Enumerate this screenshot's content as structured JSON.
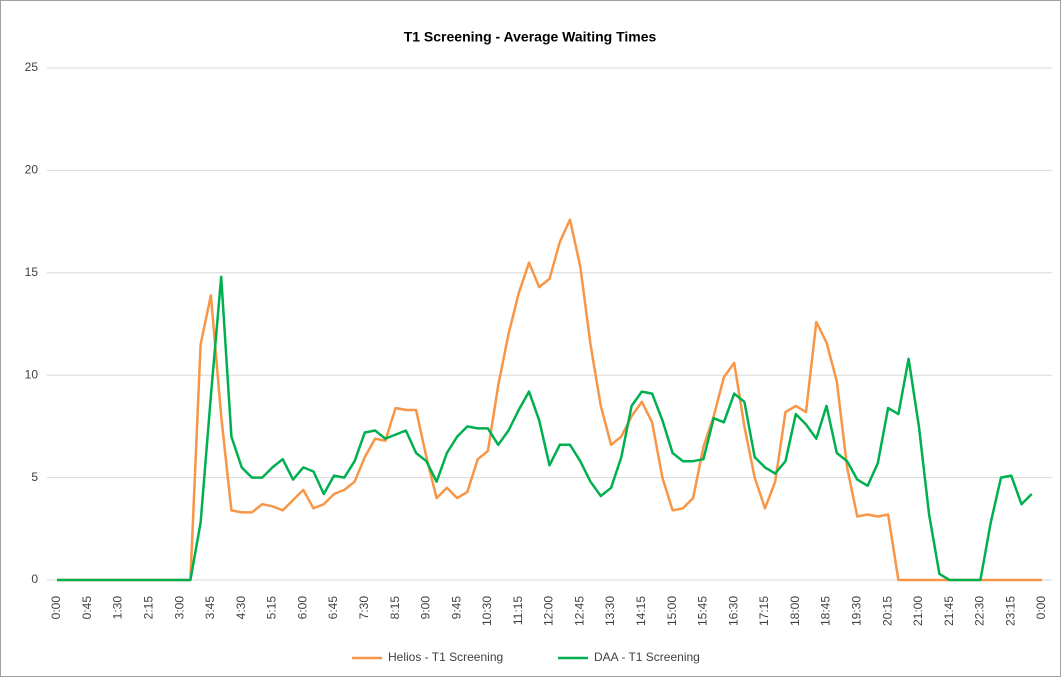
{
  "chart_data": {
    "type": "line",
    "title": "T1 Screening - Average Waiting Times",
    "categories": [
      "0:00",
      null,
      null,
      "0:45",
      null,
      null,
      "1:30",
      null,
      null,
      "2:15",
      null,
      null,
      "3:00",
      null,
      null,
      "3:45",
      null,
      null,
      "4:30",
      null,
      null,
      "5:15",
      null,
      null,
      "6:00",
      null,
      null,
      "6:45",
      null,
      null,
      "7:30",
      null,
      null,
      "8:15",
      null,
      null,
      "9:00",
      null,
      null,
      "9:45",
      null,
      null,
      "10:30",
      null,
      null,
      "11:15",
      null,
      null,
      "12:00",
      null,
      null,
      "12:45",
      null,
      null,
      "13:30",
      null,
      null,
      "14:15",
      null,
      null,
      "15:00",
      null,
      null,
      "15:45",
      null,
      null,
      "16:30",
      null,
      null,
      "17:15",
      null,
      null,
      "18:00",
      null,
      null,
      "18:45",
      null,
      null,
      "19:30",
      null,
      null,
      "20:15",
      null,
      null,
      "21:00",
      null,
      null,
      "21:45",
      null,
      null,
      "22:30",
      null,
      null,
      "23:15",
      null,
      null,
      "0:00"
    ],
    "series": [
      {
        "name": "Helios - T1 Screening",
        "color": "#f79646",
        "values": [
          0,
          0,
          0,
          0,
          0,
          0,
          0,
          0,
          0,
          0,
          0,
          0,
          0,
          0,
          11.5,
          13.9,
          8,
          3.4,
          3.3,
          3.3,
          3.7,
          3.6,
          3.4,
          3.9,
          4.4,
          3.5,
          3.7,
          4.2,
          4.4,
          4.8,
          6.0,
          6.9,
          6.8,
          8.4,
          8.3,
          8.3,
          6.0,
          4.0,
          4.5,
          4.0,
          4.3,
          5.9,
          6.3,
          9.5,
          12,
          14,
          15.5,
          14.3,
          14.7,
          16.5,
          17.6,
          15.3,
          11.5,
          8.5,
          6.6,
          7.0,
          8.0,
          8.7,
          7.7,
          5.0,
          3.4,
          3.5,
          4.0,
          6.5,
          8.0,
          9.9,
          10.6,
          7.5,
          5.0,
          3.5,
          4.8,
          8.2,
          8.5,
          8.2,
          12.6,
          11.6,
          9.7,
          5.5,
          3.1,
          3.2,
          3.1,
          3.2,
          0,
          0,
          0,
          0,
          0,
          0,
          0,
          0,
          0,
          0,
          0,
          0,
          0,
          0,
          0
        ]
      },
      {
        "name": "DAA - T1 Screening",
        "color": "#00b050",
        "values": [
          0,
          0,
          0,
          0,
          0,
          0,
          0,
          0,
          0,
          0,
          0,
          0,
          0,
          0,
          2.8,
          9,
          14.8,
          7.0,
          5.5,
          5.0,
          5.0,
          5.5,
          5.9,
          4.9,
          5.5,
          5.3,
          4.2,
          5.1,
          5.0,
          5.8,
          7.2,
          7.3,
          6.9,
          7.1,
          7.3,
          6.2,
          5.8,
          4.8,
          6.2,
          7.0,
          7.5,
          7.4,
          7.4,
          6.6,
          7.3,
          8.3,
          9.2,
          7.8,
          5.6,
          6.6,
          6.6,
          5.8,
          4.8,
          4.1,
          4.5,
          6.0,
          8.5,
          9.2,
          9.1,
          7.8,
          6.2,
          5.8,
          5.8,
          5.9,
          7.9,
          7.7,
          9.1,
          8.7,
          6.0,
          5.5,
          5.2,
          5.8,
          8.1,
          7.6,
          6.9,
          8.5,
          6.2,
          5.8,
          4.9,
          4.6,
          5.7,
          8.4,
          8.1,
          10.8,
          7.5,
          3.2,
          0.3,
          0,
          0,
          0,
          0,
          2.8,
          5.0,
          5.1,
          3.7,
          4.2,
          null
        ]
      }
    ],
    "ylim": [
      0,
      25
    ],
    "yticks": [
      0,
      5,
      10,
      15,
      20,
      25
    ],
    "grid": true,
    "legend": "bottom"
  }
}
